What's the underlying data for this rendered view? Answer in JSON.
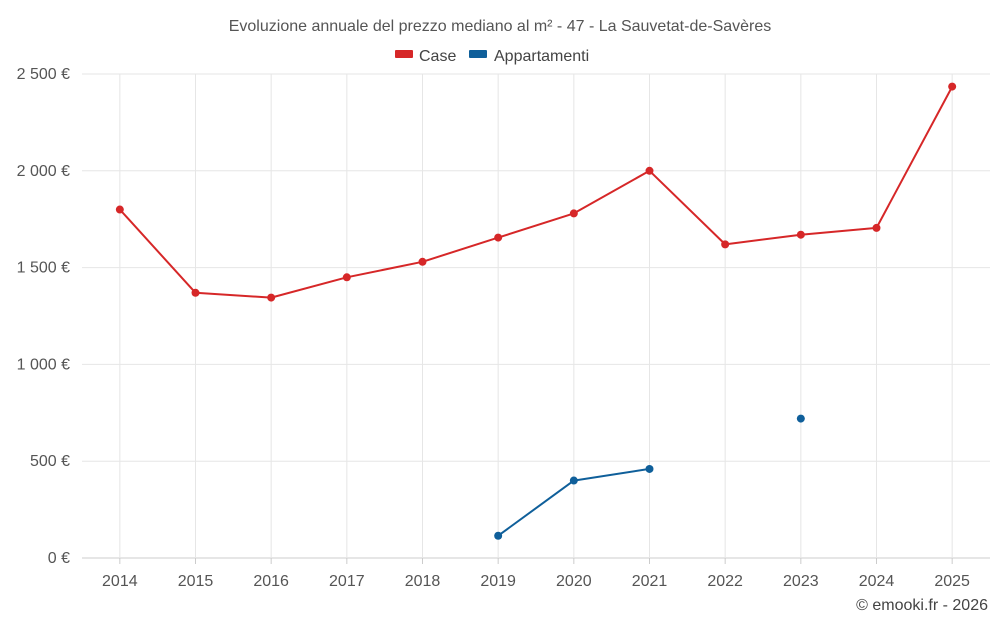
{
  "chart_data": {
    "type": "line",
    "title": "Evoluzione annuale del prezzo mediano al m² - 47 - La Sauvetat-de-Savères",
    "categories": [
      "2014",
      "2015",
      "2016",
      "2017",
      "2018",
      "2019",
      "2020",
      "2021",
      "2022",
      "2023",
      "2024",
      "2025"
    ],
    "ylim": [
      0,
      2500
    ],
    "yticks": [
      0,
      500,
      1000,
      1500,
      2000,
      2500
    ],
    "ytick_labels": [
      "0 €",
      "500 €",
      "1 000 €",
      "1 500 €",
      "2 000 €",
      "2 500 €"
    ],
    "legend_position": "top-center",
    "grid": true,
    "series": [
      {
        "name": "Case",
        "color": "#d62728",
        "values": [
          1800,
          1370,
          1345,
          1450,
          1530,
          1655,
          1780,
          2000,
          1620,
          1670,
          1705,
          2435
        ]
      },
      {
        "name": "Appartamenti",
        "color": "#0f5f9a",
        "values": [
          null,
          null,
          null,
          null,
          null,
          115,
          400,
          460,
          null,
          720,
          null,
          null
        ]
      }
    ]
  },
  "credit": "© emooki.fr - 2026"
}
